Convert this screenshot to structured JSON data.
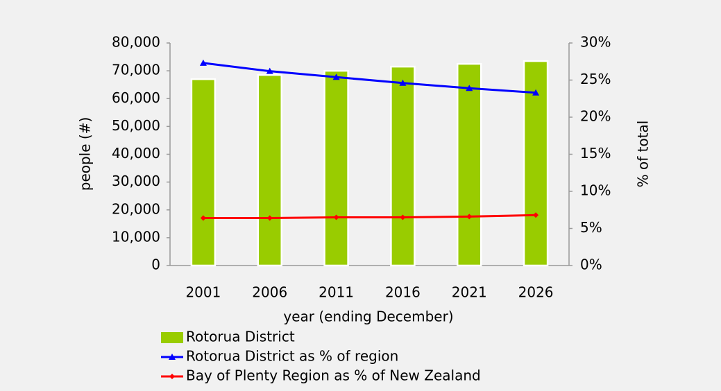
{
  "chart_data": {
    "type": "bar",
    "x_label": "year (ending December)",
    "y_label": "people (#)",
    "y2_label": "% of total",
    "categories": [
      "2001",
      "2006",
      "2011",
      "2016",
      "2021",
      "2026"
    ],
    "series": [
      {
        "name": "Rotorua District",
        "color": "#99cc00",
        "values": [
          67000,
          68500,
          70000,
          71500,
          72500,
          73500
        ]
      },
      {
        "name": "Rotorua District as % of region",
        "color": "#0000ff",
        "axis": "y2",
        "type": "line",
        "values": [
          27.3,
          26.2,
          25.4,
          24.6,
          23.9,
          23.3
        ]
      },
      {
        "name": "Bay of Plenty Region  as % of New Zealand",
        "color": "#ff0000",
        "axis": "y2",
        "type": "line",
        "values": [
          6.4,
          6.4,
          6.5,
          6.5,
          6.6,
          6.8
        ]
      }
    ],
    "ylim": [
      0,
      80000
    ],
    "yticks": [
      0,
      {
        "value": 10000,
        "label": "10,000"
      },
      {
        "value": 20000,
        "label": "20,000"
      },
      {
        "value": 30000,
        "label": "30,000"
      },
      {
        "value": 40000,
        "label": "40,000"
      },
      {
        "value": 50000,
        "label": "50,000"
      },
      {
        "value": 60000,
        "label": "60,000"
      },
      {
        "value": 70000,
        "label": "70,000"
      },
      {
        "value": 80000,
        "label": "80,000"
      }
    ],
    "y2lim": [
      0,
      30
    ],
    "y2ticks": [
      {
        "value": 0,
        "label": "0%"
      },
      {
        "value": 5,
        "label": "5%"
      },
      {
        "value": 10,
        "label": "10%"
      },
      {
        "value": 15,
        "label": "15%"
      },
      {
        "value": 20,
        "label": "20%"
      },
      {
        "value": 25,
        "label": "25%"
      },
      {
        "value": 30,
        "label": "30%"
      }
    ],
    "legend": "bottom-left"
  }
}
